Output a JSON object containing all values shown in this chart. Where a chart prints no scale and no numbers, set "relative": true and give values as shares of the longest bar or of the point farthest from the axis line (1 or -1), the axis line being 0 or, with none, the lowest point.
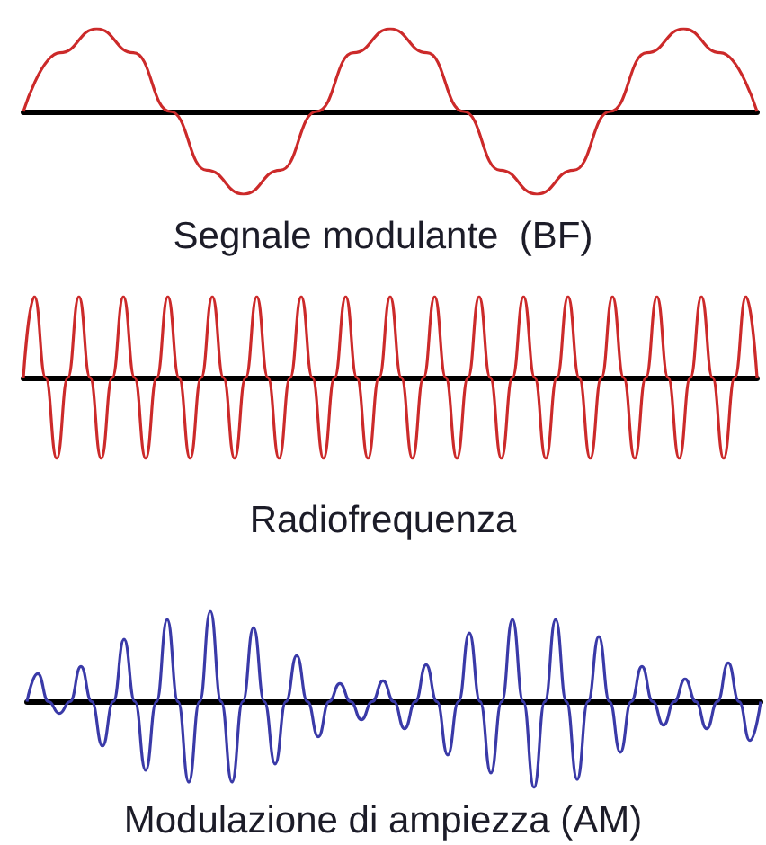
{
  "chart_data": [
    {
      "type": "line",
      "xlabel": "Segnale modulante  (BF)",
      "relative": true,
      "marker": "none",
      "color": "#cc2a2a",
      "categories": [
        null,
        null,
        null,
        null,
        null,
        null,
        null,
        null,
        null,
        null,
        null,
        null,
        null,
        null,
        null,
        null,
        null,
        null,
        null,
        null,
        null
      ],
      "values": [
        0,
        0.71,
        1,
        0.71,
        0,
        -0.71,
        -1,
        -0.71,
        0,
        0.71,
        1,
        0.71,
        0,
        -0.71,
        -1,
        -0.71,
        0,
        0.71,
        1,
        0.71,
        0
      ]
    },
    {
      "type": "line",
      "xlabel": "Radiofrequenza",
      "relative": true,
      "marker": "none",
      "color": "#cc2a2a",
      "categories": [
        null,
        null,
        null,
        null,
        null,
        null,
        null,
        null,
        null,
        null,
        null,
        null,
        null,
        null,
        null,
        null,
        null,
        null,
        null,
        null,
        null,
        null,
        null,
        null,
        null,
        null,
        null,
        null,
        null,
        null,
        null,
        null,
        null,
        null,
        null,
        null,
        null,
        null,
        null,
        null,
        null,
        null,
        null,
        null,
        null,
        null,
        null,
        null,
        null,
        null,
        null,
        null,
        null,
        null,
        null,
        null,
        null,
        null,
        null,
        null,
        null,
        null,
        null,
        null,
        null,
        null,
        null
      ],
      "values": [
        0,
        1,
        0,
        -1,
        0,
        1,
        0,
        -1,
        0,
        1,
        0,
        -1,
        0,
        1,
        0,
        -1,
        0,
        1,
        0,
        -1,
        0,
        1,
        0,
        -1,
        0,
        1,
        0,
        -1,
        0,
        1,
        0,
        -1,
        0,
        1,
        0,
        -1,
        0,
        1,
        0,
        -1,
        0,
        1,
        0,
        -1,
        0,
        1,
        0,
        -1,
        0,
        1,
        0,
        -1,
        0,
        1,
        0,
        -1,
        0,
        1,
        0,
        -1,
        0,
        1,
        0,
        -1,
        0,
        1,
        0
      ]
    },
    {
      "type": "line",
      "xlabel": "Modulazione di ampiezza (AM)",
      "relative": true,
      "marker": "none",
      "color": "#3a3aa8",
      "categories": [
        null,
        null,
        null,
        null,
        null,
        null,
        null,
        null,
        null,
        null,
        null,
        null,
        null,
        null,
        null,
        null,
        null,
        null,
        null,
        null,
        null,
        null,
        null,
        null,
        null,
        null,
        null,
        null,
        null,
        null,
        null,
        null,
        null,
        null,
        null,
        null,
        null,
        null,
        null,
        null,
        null,
        null,
        null,
        null,
        null,
        null,
        null,
        null,
        null,
        null,
        null,
        null,
        null,
        null,
        null,
        null,
        null,
        null,
        null,
        null,
        null,
        null,
        null,
        null,
        null,
        null,
        null,
        null,
        null
      ],
      "values": [
        0,
        0.31,
        0,
        -0.13,
        0,
        0.39,
        0,
        -0.49,
        0,
        0.69,
        0,
        -0.76,
        0,
        0.91,
        0,
        -0.89,
        0,
        1,
        0,
        -0.89,
        0,
        0.82,
        0,
        -0.69,
        0,
        0.51,
        0,
        -0.39,
        0,
        0.2,
        0,
        -0.2,
        0,
        0.23,
        0,
        -0.3,
        0,
        0.41,
        0,
        -0.59,
        0,
        0.76,
        0,
        -0.79,
        0,
        0.91,
        0,
        -0.95,
        0,
        0.91,
        0,
        -0.86,
        0,
        0.72,
        0,
        -0.56,
        0,
        0.39,
        0,
        -0.26,
        0,
        0.25,
        0,
        -0.3,
        0,
        0.43,
        0,
        -0.43,
        0
      ]
    }
  ]
}
